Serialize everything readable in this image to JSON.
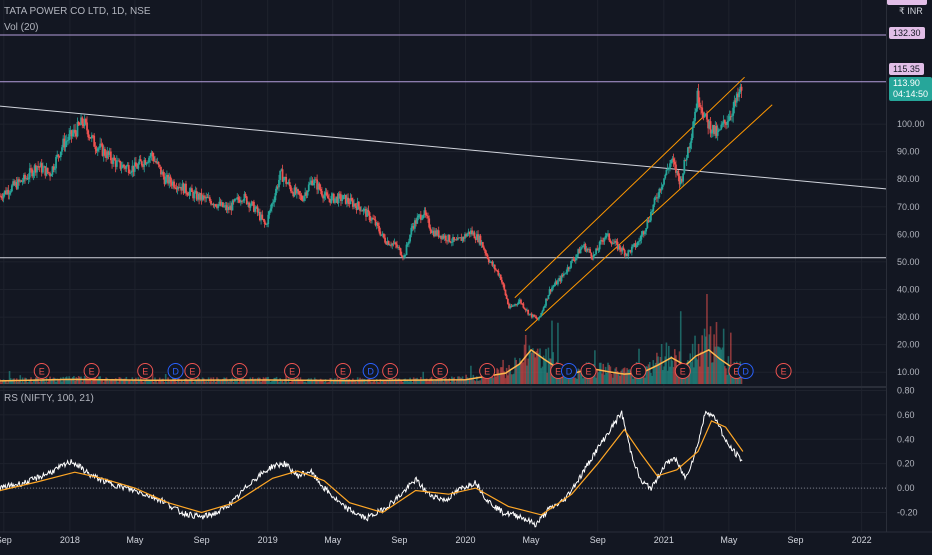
{
  "header": {
    "title": "TATA POWER CO LTD, 1D, NSE",
    "volume_indicator": "Vol (20)",
    "currency_label": "₹ INR"
  },
  "price_tags": {
    "levels": [
      "132.30",
      "115.35"
    ],
    "last_price": "113.90",
    "countdown": "04:14:50"
  },
  "rs_indicator": {
    "label": "RS (NIFTY, 100, 21)"
  },
  "colors": {
    "background": "#131722",
    "grid": "#1e222d",
    "up": "#26a69a",
    "down": "#ef5350",
    "level_line": "#b39ddb",
    "level_tag": "#e1bee7",
    "trendline": "#d1d4dc",
    "channel": "#ff9800",
    "volume_ma": "#ffb74d",
    "rs_line": "#ffffff",
    "rs_signal": "#ffa726",
    "earnings": "#ef5350",
    "dividend": "#2962ff"
  },
  "chart_data": [
    {
      "type": "candlestick",
      "title": "TATA POWER CO LTD, 1D, NSE",
      "xlabel": "",
      "ylabel": "",
      "x_ticks": [
        "Sep",
        "2018",
        "May",
        "Sep",
        "2019",
        "May",
        "Sep",
        "2020",
        "May",
        "Sep",
        "2021",
        "May",
        "Sep",
        "2022"
      ],
      "x_tick_dates": [
        "2017-09-01",
        "2018-01-01",
        "2018-05-01",
        "2018-09-01",
        "2019-01-01",
        "2019-05-01",
        "2019-09-01",
        "2020-01-01",
        "2020-05-01",
        "2020-09-01",
        "2021-01-01",
        "2021-05-01",
        "2021-09-01",
        "2022-01-01"
      ],
      "xlim": [
        "2017-08-25",
        "2022-02-15"
      ],
      "y_ticks": [
        10,
        20,
        30,
        40,
        50,
        60,
        70,
        80,
        90,
        100
      ],
      "y_tick_labels": [
        "10.00",
        "20.00",
        "30.00",
        "40.00",
        "50.00",
        "60.00",
        "70.00",
        "80.00",
        "90.00",
        "100.00"
      ],
      "ylim": [
        5,
        145
      ],
      "close_path": [
        [
          "2017-08-25",
          74
        ],
        [
          "2017-09-15",
          77
        ],
        [
          "2017-10-10",
          80
        ],
        [
          "2017-11-01",
          85
        ],
        [
          "2017-11-25",
          82
        ],
        [
          "2017-12-20",
          93
        ],
        [
          "2018-01-10",
          97
        ],
        [
          "2018-01-25",
          101
        ],
        [
          "2018-02-15",
          93
        ],
        [
          "2018-03-10",
          89
        ],
        [
          "2018-04-01",
          85
        ],
        [
          "2018-05-01",
          84
        ],
        [
          "2018-06-01",
          89
        ],
        [
          "2018-06-25",
          80
        ],
        [
          "2018-07-20",
          78
        ],
        [
          "2018-08-20",
          74
        ],
        [
          "2018-09-20",
          72
        ],
        [
          "2018-10-20",
          69
        ],
        [
          "2018-11-15",
          74
        ],
        [
          "2018-12-10",
          69
        ],
        [
          "2018-12-28",
          63
        ],
        [
          "2019-01-25",
          82
        ],
        [
          "2019-02-15",
          76
        ],
        [
          "2019-03-05",
          73
        ],
        [
          "2019-03-25",
          80
        ],
        [
          "2019-04-20",
          73
        ],
        [
          "2019-05-20",
          73
        ],
        [
          "2019-06-20",
          70
        ],
        [
          "2019-07-15",
          65
        ],
        [
          "2019-08-05",
          58
        ],
        [
          "2019-08-25",
          56
        ],
        [
          "2019-09-10",
          52
        ],
        [
          "2019-09-25",
          63
        ],
        [
          "2019-10-15",
          68
        ],
        [
          "2019-11-01",
          61
        ],
        [
          "2019-11-25",
          59
        ],
        [
          "2019-12-15",
          57
        ],
        [
          "2020-01-10",
          61
        ],
        [
          "2020-01-28",
          58
        ],
        [
          "2020-02-15",
          50
        ],
        [
          "2020-03-05",
          45
        ],
        [
          "2020-03-22",
          33
        ],
        [
          "2020-04-10",
          36
        ],
        [
          "2020-04-28",
          31
        ],
        [
          "2020-05-15",
          29
        ],
        [
          "2020-06-05",
          40
        ],
        [
          "2020-06-25",
          44
        ],
        [
          "2020-07-15",
          50
        ],
        [
          "2020-08-05",
          56
        ],
        [
          "2020-08-25",
          52
        ],
        [
          "2020-09-15",
          60
        ],
        [
          "2020-10-05",
          56
        ],
        [
          "2020-10-25",
          53
        ],
        [
          "2020-11-15",
          57
        ],
        [
          "2020-12-05",
          66
        ],
        [
          "2020-12-25",
          77
        ],
        [
          "2021-01-15",
          87
        ],
        [
          "2021-02-01",
          79
        ],
        [
          "2021-02-20",
          96
        ],
        [
          "2021-03-05",
          111
        ],
        [
          "2021-03-20",
          101
        ],
        [
          "2021-04-10",
          96
        ],
        [
          "2021-04-25",
          101
        ],
        [
          "2021-05-10",
          106
        ],
        [
          "2021-05-25",
          113
        ]
      ],
      "horizontal_levels": [
        132.3,
        115.35,
        51.5
      ],
      "trendline": [
        [
          "2017-08-25",
          106.5
        ],
        [
          "2022-02-15",
          76.5
        ]
      ],
      "channel_upper": [
        [
          "2020-04-01",
          37
        ],
        [
          "2021-05-30",
          117
        ]
      ],
      "channel_lower": [
        [
          "2020-04-20",
          25
        ],
        [
          "2021-07-20",
          107
        ]
      ]
    },
    {
      "type": "bar",
      "title": "Vol (20)",
      "note": "volume histogram overlaid at bottom of price pane with 20-period moving average",
      "ma_path": [
        [
          "2017-08-25",
          1
        ],
        [
          "2018-01-01",
          1.5
        ],
        [
          "2018-06-01",
          1.2
        ],
        [
          "2019-01-01",
          1.3
        ],
        [
          "2019-06-01",
          1.1
        ],
        [
          "2020-01-01",
          1.4
        ],
        [
          "2020-03-15",
          3.5
        ],
        [
          "2020-04-10",
          6.5
        ],
        [
          "2020-05-01",
          11
        ],
        [
          "2020-05-25",
          8
        ],
        [
          "2020-06-20",
          5
        ],
        [
          "2020-07-20",
          3.5
        ],
        [
          "2020-08-20",
          5
        ],
        [
          "2020-09-20",
          4
        ],
        [
          "2020-10-20",
          3.2
        ],
        [
          "2020-11-20",
          3.5
        ],
        [
          "2020-12-20",
          6
        ],
        [
          "2021-01-15",
          8.5
        ],
        [
          "2021-02-10",
          6
        ],
        [
          "2021-03-01",
          9
        ],
        [
          "2021-03-25",
          11
        ],
        [
          "2021-04-15",
          8
        ],
        [
          "2021-05-10",
          5
        ],
        [
          "2021-05-27",
          4.5
        ]
      ],
      "earnings_dates": [
        "2017-11-10",
        "2018-02-10",
        "2018-05-20",
        "2018-08-15",
        "2018-11-10",
        "2019-02-15",
        "2019-05-20",
        "2019-08-15",
        "2019-11-15",
        "2020-02-10",
        "2020-06-20",
        "2020-08-15",
        "2020-11-15",
        "2021-02-05",
        "2021-05-15",
        "2021-08-10"
      ],
      "dividend_dates": [
        "2018-07-15",
        "2019-07-10",
        "2020-07-10",
        "2021-06-01"
      ],
      "marker_letters": {
        "earnings": "E",
        "dividend": "D"
      }
    },
    {
      "type": "line",
      "title": "RS (NIFTY, 100, 21)",
      "y_ticks": [
        -0.2,
        0,
        0.2,
        0.4,
        0.6,
        0.8
      ],
      "y_tick_labels": [
        "-0.20",
        "0.00",
        "0.20",
        "0.40",
        "0.60",
        "0.80"
      ],
      "ylim": [
        -0.36,
        0.82
      ],
      "zero_line": 0,
      "series": [
        {
          "name": "",
          "color": "#ffffff",
          "path": [
            [
              "2017-08-25",
              0.0
            ],
            [
              "2017-10-15",
              0.05
            ],
            [
              "2017-12-01",
              0.14
            ],
            [
              "2018-01-05",
              0.22
            ],
            [
              "2018-02-10",
              0.1
            ],
            [
              "2018-03-15",
              0.04
            ],
            [
              "2018-04-15",
              0.0
            ],
            [
              "2018-05-20",
              -0.05
            ],
            [
              "2018-06-20",
              -0.1
            ],
            [
              "2018-07-25",
              -0.2
            ],
            [
              "2018-09-01",
              -0.24
            ],
            [
              "2018-10-01",
              -0.2
            ],
            [
              "2018-11-01",
              -0.1
            ],
            [
              "2018-12-01",
              0.05
            ],
            [
              "2019-01-10",
              0.18
            ],
            [
              "2019-02-01",
              0.2
            ],
            [
              "2019-02-25",
              0.1
            ],
            [
              "2019-03-20",
              0.14
            ],
            [
              "2019-04-15",
              0.0
            ],
            [
              "2019-05-20",
              -0.15
            ],
            [
              "2019-07-01",
              -0.25
            ],
            [
              "2019-08-01",
              -0.18
            ],
            [
              "2019-09-05",
              -0.05
            ],
            [
              "2019-10-01",
              0.07
            ],
            [
              "2019-10-25",
              -0.05
            ],
            [
              "2019-11-25",
              -0.1
            ],
            [
              "2019-12-25",
              0.0
            ],
            [
              "2020-01-20",
              0.05
            ],
            [
              "2020-02-10",
              -0.1
            ],
            [
              "2020-03-10",
              -0.2
            ],
            [
              "2020-04-10",
              -0.23
            ],
            [
              "2020-05-10",
              -0.3
            ],
            [
              "2020-06-01",
              -0.18
            ],
            [
              "2020-07-01",
              -0.1
            ],
            [
              "2020-08-01",
              0.1
            ],
            [
              "2020-08-25",
              0.28
            ],
            [
              "2020-09-20",
              0.45
            ],
            [
              "2020-10-15",
              0.62
            ],
            [
              "2020-11-01",
              0.3
            ],
            [
              "2020-11-20",
              0.05
            ],
            [
              "2020-12-10",
              0.0
            ],
            [
              "2021-01-01",
              0.18
            ],
            [
              "2021-01-20",
              0.25
            ],
            [
              "2021-02-10",
              0.08
            ],
            [
              "2021-03-01",
              0.3
            ],
            [
              "2021-03-20",
              0.64
            ],
            [
              "2021-04-10",
              0.55
            ],
            [
              "2021-04-25",
              0.38
            ],
            [
              "2021-05-10",
              0.3
            ],
            [
              "2021-05-27",
              0.22
            ]
          ]
        },
        {
          "name": "",
          "color": "#ffa726",
          "path": [
            [
              "2017-08-25",
              -0.02
            ],
            [
              "2017-11-01",
              0.05
            ],
            [
              "2018-01-10",
              0.13
            ],
            [
              "2018-03-01",
              0.08
            ],
            [
              "2018-05-01",
              0.0
            ],
            [
              "2018-07-01",
              -0.12
            ],
            [
              "2018-09-01",
              -0.2
            ],
            [
              "2018-11-01",
              -0.12
            ],
            [
              "2019-01-10",
              0.08
            ],
            [
              "2019-02-25",
              0.14
            ],
            [
              "2019-04-15",
              0.06
            ],
            [
              "2019-06-01",
              -0.12
            ],
            [
              "2019-08-01",
              -0.2
            ],
            [
              "2019-10-01",
              -0.02
            ],
            [
              "2019-12-01",
              -0.05
            ],
            [
              "2020-01-20",
              0.0
            ],
            [
              "2020-03-20",
              -0.15
            ],
            [
              "2020-05-20",
              -0.22
            ],
            [
              "2020-07-15",
              -0.05
            ],
            [
              "2020-09-01",
              0.2
            ],
            [
              "2020-10-20",
              0.48
            ],
            [
              "2020-11-20",
              0.28
            ],
            [
              "2020-12-20",
              0.1
            ],
            [
              "2021-01-25",
              0.15
            ],
            [
              "2021-03-05",
              0.3
            ],
            [
              "2021-03-30",
              0.55
            ],
            [
              "2021-04-25",
              0.5
            ],
            [
              "2021-05-27",
              0.3
            ]
          ]
        }
      ]
    }
  ]
}
